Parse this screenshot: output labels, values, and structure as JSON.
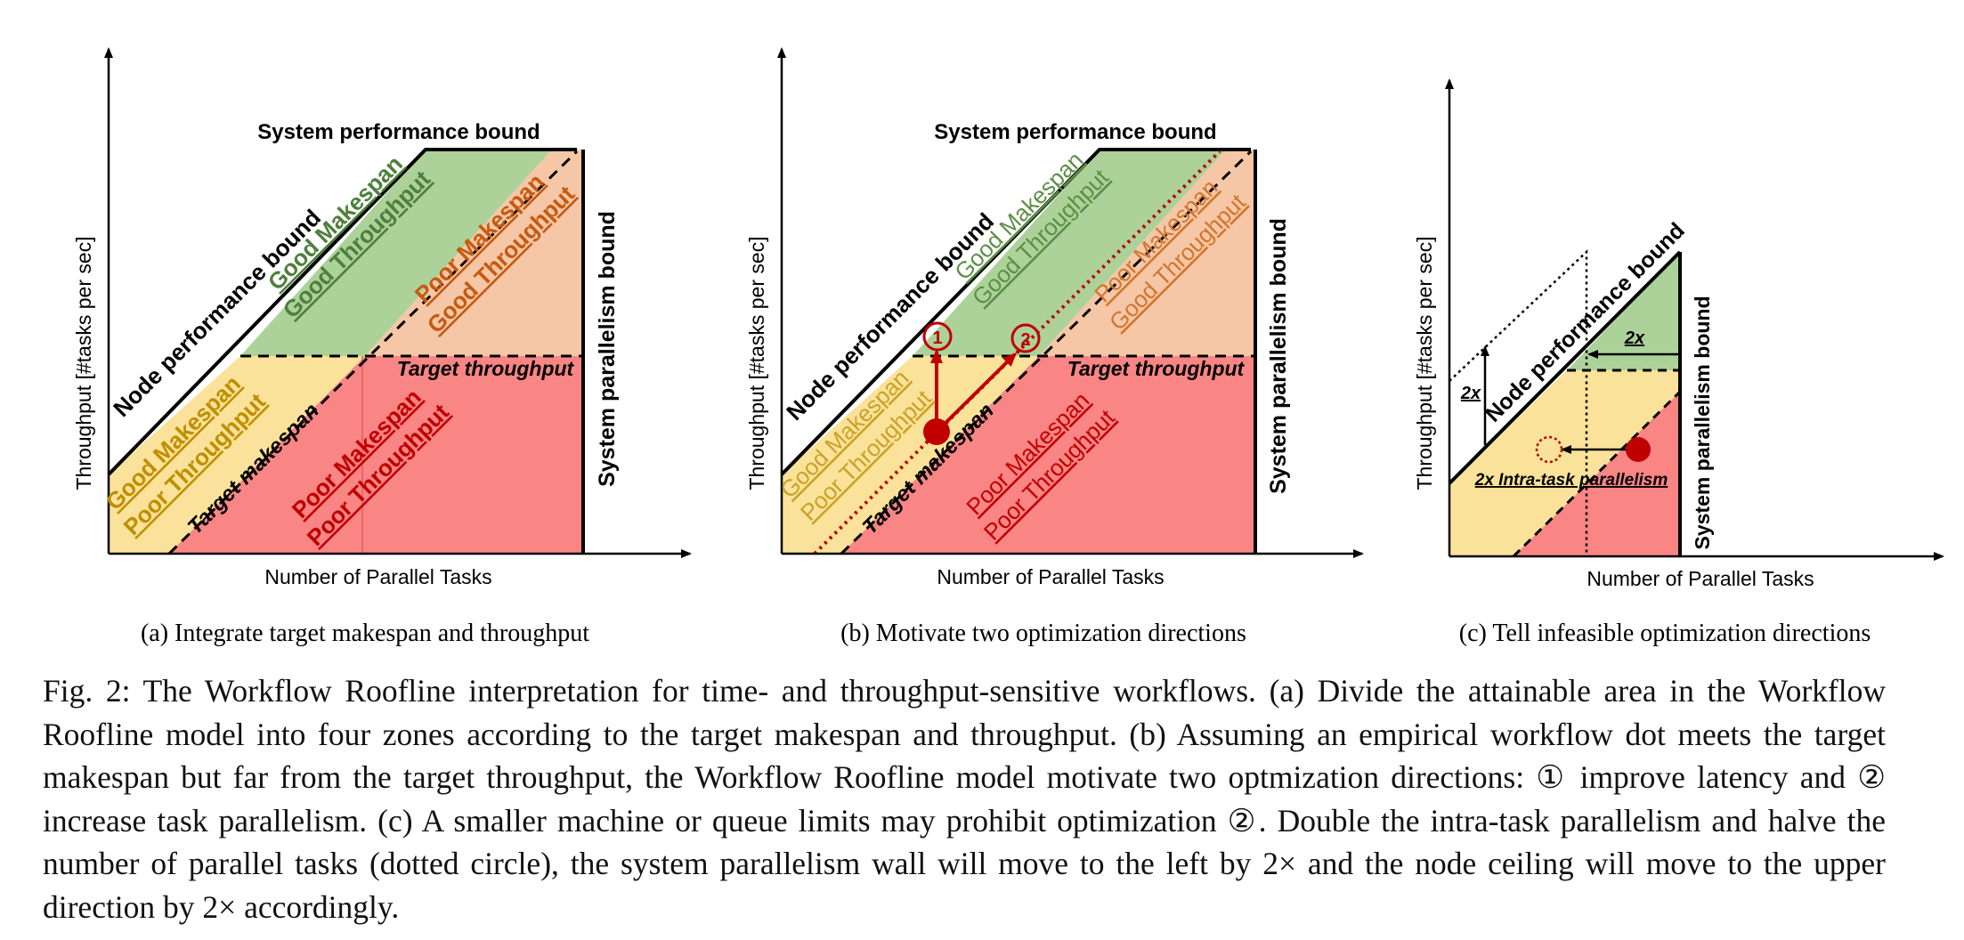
{
  "panels": [
    {
      "id": "a",
      "caption": "(a) Integrate target makespan and throughput",
      "xlabel": "Number of Parallel Tasks",
      "ylabel": "Throughput   [#tasks per sec]",
      "top_bound": "System performance bound",
      "node_bound": "Node performance bound",
      "sys_par_bound": "System parallelism bound",
      "target_throughput": "Target throughput",
      "target_makespan": "Target makespan",
      "zones": {
        "green": [
          "Good Makespan",
          "Good Throughput"
        ],
        "orange": [
          "Poor Makespan",
          "Good Throughput"
        ],
        "yellow": [
          "Good Makespan",
          "Poor Throughput"
        ],
        "red": [
          "Poor Makespan",
          "Poor Throughput"
        ]
      }
    },
    {
      "id": "b",
      "caption": "(b) Motivate two optimization directions",
      "xlabel": "Number of Parallel Tasks",
      "ylabel": "Throughput   [#tasks per sec]",
      "top_bound": "System performance bound",
      "node_bound": "Node performance bound",
      "sys_par_bound": "System parallelism bound",
      "target_throughput": "Target throughput",
      "target_makespan": "Target makespan",
      "zones": {
        "green": [
          "Good Makespan",
          "Good Throughput"
        ],
        "orange": [
          "Poor Makespan",
          "Good Throughput"
        ],
        "yellow": [
          "Good Makespan",
          "Poor Throughput"
        ],
        "red": [
          "Poor Makespan",
          "Poor Throughput"
        ]
      },
      "markers": [
        "1",
        "2"
      ]
    },
    {
      "id": "c",
      "caption": "(c) Tell infeasible optimization directions",
      "xlabel": "Number of Parallel Tasks",
      "ylabel": "Throughput   [#tasks per sec]",
      "node_bound": "Node performance bound",
      "sys_par_bound": "System parallelism bound",
      "intra_task": "2x Intra-task parallelism",
      "shift_left": "2x",
      "shift_up": "2x"
    }
  ],
  "caption": {
    "fig_label": "Fig. 2:",
    "part1": " The Workflow Roofline interpretation for time- and throughput-sensitive workflows. (a) Divide the attainable area in the Workflow Roofline model into four zones according to the target makespan and throughput. (b) Assuming an empirical workflow dot meets the target makespan but far from the target throughput, the Workflow Roofline model motivate two optmization directions: ",
    "circ1": "①",
    "part2": " improve latency and ",
    "circ2": "②",
    "part3": " increase task parallelism. (c) A smaller machine or queue limits may prohibit optimization ",
    "circ3": "②",
    "part4": ". Double the intra-task parallelism and halve the number of parallel tasks (dotted circle), the system parallelism wall will move to the left by 2× and the node ceiling will move to the upper direction by 2× accordingly."
  },
  "colors": {
    "green": "#acd29a",
    "orange": "#f5c7a6",
    "yellow": "#fbe29a",
    "red": "#f98585",
    "dark_red": "#c00000",
    "green_text": "#4f7f3c",
    "orange_text": "#c55a11",
    "yellow_text": "#bf8f00",
    "red_text": "#c00000"
  }
}
